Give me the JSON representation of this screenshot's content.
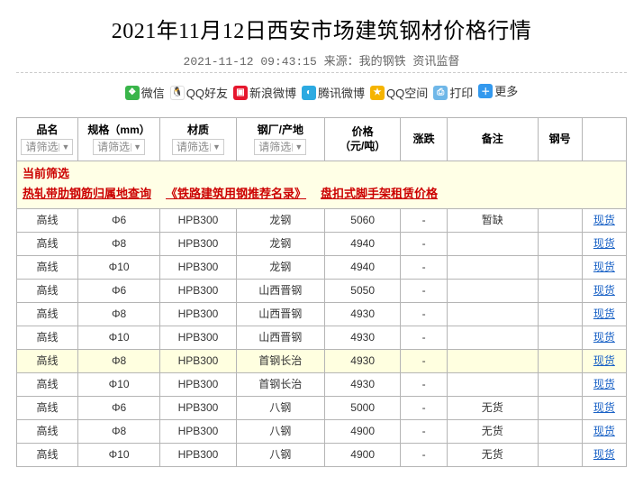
{
  "header": {
    "title": "2021年11月12日西安市场建筑钢材价格行情",
    "datetime": "2021-11-12 09:43:15",
    "source_label": "来源：",
    "source_name": "我的钢铁",
    "source_suffix": " 资讯监督"
  },
  "share": {
    "items": [
      {
        "key": "wechat",
        "label": "微信",
        "bg": "#39b54a",
        "glyph": "❖"
      },
      {
        "key": "qq",
        "label": "QQ好友",
        "bg": "#ffffff",
        "glyph": "🐧"
      },
      {
        "key": "weibo",
        "label": "新浪微博",
        "bg": "#e6162d",
        "glyph": "▣"
      },
      {
        "key": "tqq",
        "label": "腾讯微博",
        "bg": "#2caae1",
        "glyph": "◐"
      },
      {
        "key": "qzone",
        "label": "QQ空间",
        "bg": "#f5b400",
        "glyph": "★"
      },
      {
        "key": "print",
        "label": "打印",
        "bg": "#6fb7e8",
        "glyph": "⎙"
      },
      {
        "key": "more",
        "label": "更多",
        "bg": "#3399ee",
        "glyph": "＋"
      }
    ]
  },
  "table": {
    "columns": [
      {
        "key": "name",
        "label": "品名",
        "filter": true,
        "width_class": "col-name"
      },
      {
        "key": "spec",
        "label": "规格（mm）",
        "filter": true,
        "width_class": "col-spec"
      },
      {
        "key": "mat",
        "label": "材质",
        "filter": true,
        "width_class": "col-mat"
      },
      {
        "key": "plant",
        "label": "钢厂/产地",
        "filter": true,
        "width_class": "col-plant"
      },
      {
        "key": "price",
        "label": "价格\n（元/吨）",
        "filter": false,
        "width_class": "col-price"
      },
      {
        "key": "chg",
        "label": "涨跌",
        "filter": false,
        "width_class": "col-chg"
      },
      {
        "key": "note",
        "label": "备注",
        "filter": false,
        "width_class": "col-note"
      },
      {
        "key": "num",
        "label": "钢号",
        "filter": false,
        "width_class": "col-num"
      },
      {
        "key": "tail",
        "label": "",
        "filter": false,
        "width_class": "col-tail"
      }
    ],
    "filter_placeholder": "请筛选",
    "filter_banner": {
      "current_label": "当前筛选",
      "links": [
        {
          "text": "热轧带肋钢筋归属地查询"
        },
        {
          "text": "《铁路建筑用钢推荐名录》"
        },
        {
          "text": "盘扣式脚手架租赁价格"
        }
      ]
    },
    "tail_link_text": "现货",
    "rows": [
      {
        "name": "高线",
        "spec": "Φ6",
        "mat": "HPB300",
        "plant": "龙钢",
        "price": "5060",
        "chg": "-",
        "note": "暂缺",
        "num": "",
        "highlight": false
      },
      {
        "name": "高线",
        "spec": "Φ8",
        "mat": "HPB300",
        "plant": "龙钢",
        "price": "4940",
        "chg": "-",
        "note": "",
        "num": "",
        "highlight": false
      },
      {
        "name": "高线",
        "spec": "Φ10",
        "mat": "HPB300",
        "plant": "龙钢",
        "price": "4940",
        "chg": "-",
        "note": "",
        "num": "",
        "highlight": false
      },
      {
        "name": "高线",
        "spec": "Φ6",
        "mat": "HPB300",
        "plant": "山西晋钢",
        "price": "5050",
        "chg": "-",
        "note": "",
        "num": "",
        "highlight": false
      },
      {
        "name": "高线",
        "spec": "Φ8",
        "mat": "HPB300",
        "plant": "山西晋钢",
        "price": "4930",
        "chg": "-",
        "note": "",
        "num": "",
        "highlight": false
      },
      {
        "name": "高线",
        "spec": "Φ10",
        "mat": "HPB300",
        "plant": "山西晋钢",
        "price": "4930",
        "chg": "-",
        "note": "",
        "num": "",
        "highlight": false
      },
      {
        "name": "高线",
        "spec": "Φ8",
        "mat": "HPB300",
        "plant": "首钢长治",
        "price": "4930",
        "chg": "-",
        "note": "",
        "num": "",
        "highlight": true
      },
      {
        "name": "高线",
        "spec": "Φ10",
        "mat": "HPB300",
        "plant": "首钢长治",
        "price": "4930",
        "chg": "-",
        "note": "",
        "num": "",
        "highlight": false
      },
      {
        "name": "高线",
        "spec": "Φ6",
        "mat": "HPB300",
        "plant": "八钢",
        "price": "5000",
        "chg": "-",
        "note": "无货",
        "num": "",
        "highlight": false
      },
      {
        "name": "高线",
        "spec": "Φ8",
        "mat": "HPB300",
        "plant": "八钢",
        "price": "4900",
        "chg": "-",
        "note": "无货",
        "num": "",
        "highlight": false
      },
      {
        "name": "高线",
        "spec": "Φ10",
        "mat": "HPB300",
        "plant": "八钢",
        "price": "4900",
        "chg": "-",
        "note": "无货",
        "num": "",
        "highlight": false
      }
    ]
  },
  "colors": {
    "border": "#b5b5b5",
    "highlight_row": "#ffffe0",
    "banner_bg": "#ffffe6",
    "link_blue": "#1a62c6",
    "link_red": "#c00"
  }
}
